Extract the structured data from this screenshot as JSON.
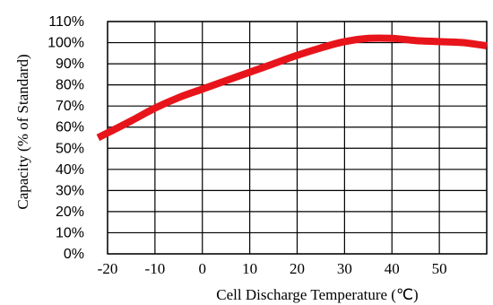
{
  "chart_data": {
    "type": "line",
    "title": "",
    "xlabel": "Cell Discharge Temperature (℃)",
    "ylabel": "Capacity (% of Standard)",
    "xlim": [
      -20,
      60
    ],
    "ylim": [
      0,
      110
    ],
    "x_ticks": [
      -20,
      -10,
      0,
      10,
      20,
      30,
      40,
      50
    ],
    "x_tick_labels": [
      "-20",
      "-10",
      "0",
      "10",
      "20",
      "30",
      "40",
      "50"
    ],
    "y_ticks": [
      0,
      10,
      20,
      30,
      40,
      50,
      60,
      70,
      80,
      90,
      100,
      110
    ],
    "y_tick_labels": [
      "0%",
      "10%",
      "20%",
      "30%",
      "40%",
      "50%",
      "60%",
      "70%",
      "80%",
      "90%",
      "100%",
      "110%"
    ],
    "grid": true,
    "series": [
      {
        "color": "#e8141b",
        "x": [
          -22,
          -15,
          -10,
          -5,
          0,
          5,
          10,
          15,
          20,
          25,
          30,
          35,
          40,
          45,
          50,
          55,
          60
        ],
        "y": [
          55,
          63,
          69,
          74,
          78,
          82,
          86,
          90,
          94,
          97.5,
          100.5,
          102,
          102,
          101,
          100.5,
          100,
          98.5
        ]
      }
    ]
  }
}
